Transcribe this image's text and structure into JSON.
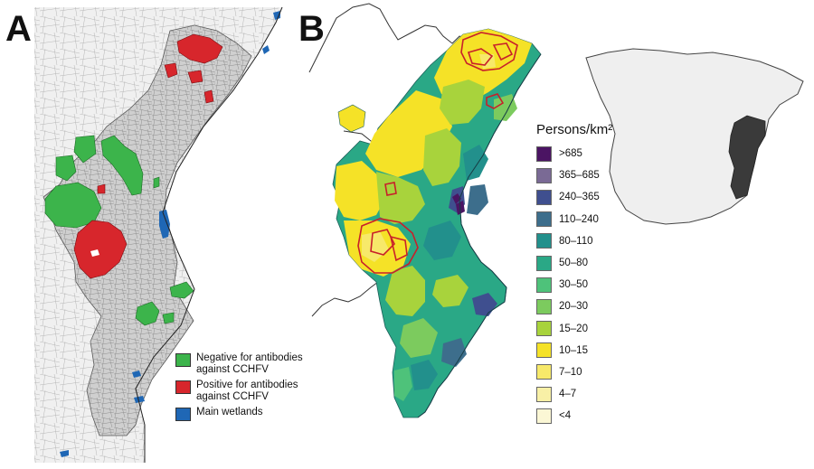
{
  "panel_a": {
    "label": "A",
    "colors": {
      "negative": "#3cb44b",
      "positive": "#d7262c",
      "wetlands": "#1f67b5",
      "region": "#cfcfcf",
      "outside": "#f0f0f0"
    },
    "legend": [
      {
        "lines": [
          "Negative for antibodies",
          "against CCHFV"
        ],
        "color": "#3cb44b"
      },
      {
        "lines": [
          "Positive for antibodies",
          "against CCHFV"
        ],
        "color": "#d7262c"
      },
      {
        "lines": [
          "Main wetlands"
        ],
        "color": "#1f67b5"
      }
    ]
  },
  "panel_b": {
    "label": "B",
    "legend_title": "Persons/km²",
    "legend": [
      {
        "label": ">685",
        "color": "#4b1463"
      },
      {
        "label": "365–685",
        "color": "#7a6a95"
      },
      {
        "label": "240–365",
        "color": "#3f4f8f"
      },
      {
        "label": "110–240",
        "color": "#3d6e8c"
      },
      {
        "label": "80–110",
        "color": "#22908c"
      },
      {
        "label": "50–80",
        "color": "#2aa886"
      },
      {
        "label": "30–50",
        "color": "#4ec27a"
      },
      {
        "label": "20–30",
        "color": "#7ccb5e"
      },
      {
        "label": "15–20",
        "color": "#a8d33c"
      },
      {
        "label": "10–15",
        "color": "#f5e227"
      },
      {
        "label": "7–10",
        "color": "#f7e96a"
      },
      {
        "label": "4–7",
        "color": "#f8f0a6"
      },
      {
        "label": "<4",
        "color": "#fbf7d5"
      }
    ],
    "study_outline_color": "#c8202a",
    "inset": {
      "highlighted_region_color": "#3a3a3a",
      "country_color": "#efefef"
    }
  }
}
